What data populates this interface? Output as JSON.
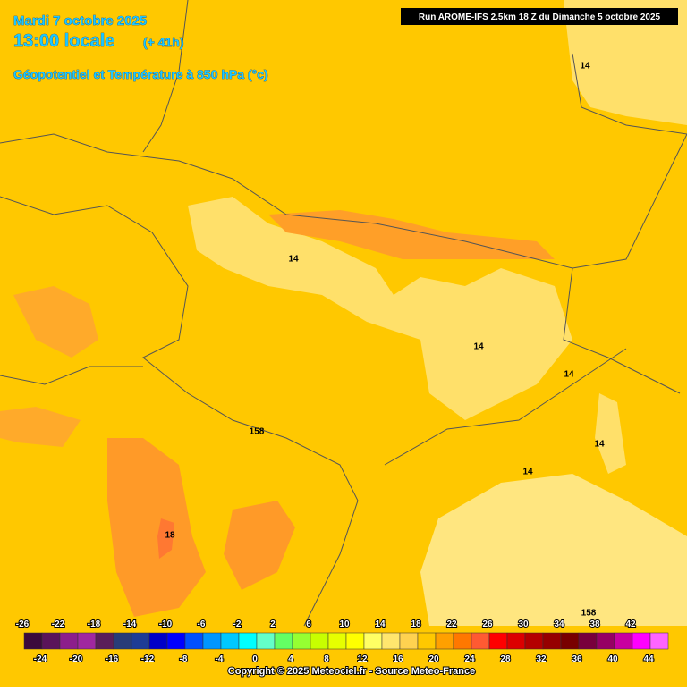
{
  "header": {
    "date": "Mardi 7 octobre 2025",
    "time": "13:00 locale",
    "lead": "(+ 41h)",
    "field": "Géopotentiel et Température à 850 hPa (°c)",
    "run": "Run AROME-IFS 2.5km 18 Z du Dimanche 5 octobre 2025"
  },
  "map": {
    "labels": [
      "14",
      "14",
      "14",
      "14",
      "14",
      "14",
      "158",
      "18",
      "158"
    ]
  },
  "legend": {
    "top_labels": [
      "-26",
      "-22",
      "-18",
      "-14",
      "-10",
      "-6",
      "-2",
      "2",
      "6",
      "10",
      "14",
      "18",
      "22",
      "26",
      "30",
      "34",
      "38",
      "42"
    ],
    "bottom_labels": [
      "-24",
      "-20",
      "-16",
      "-12",
      "-8",
      "-4",
      "0",
      "4",
      "8",
      "12",
      "16",
      "20",
      "24",
      "28",
      "32",
      "36",
      "40",
      "44"
    ],
    "colors": [
      "#3c0a3c",
      "#5a145a",
      "#8c1e8c",
      "#a028a0",
      "#5a1e5a",
      "#283c78",
      "#1e3c96",
      "#0000c8",
      "#0000ff",
      "#0050ff",
      "#0096ff",
      "#00c8ff",
      "#00ffff",
      "#64ffc8",
      "#64ff64",
      "#96ff32",
      "#c8ff00",
      "#e6ff00",
      "#ffff00",
      "#ffff64",
      "#ffe66e",
      "#ffd250",
      "#ffc800",
      "#ffa000",
      "#ff7800",
      "#ff5a32",
      "#ff0000",
      "#dc0000",
      "#b40000",
      "#960000",
      "#780000",
      "#78003c",
      "#960064",
      "#c800a0",
      "#ff00ff",
      "#ff64ff"
    ]
  },
  "footer": {
    "copyright": "Copyright © 2025 Meteociel.fr - Source Meteo-France"
  }
}
